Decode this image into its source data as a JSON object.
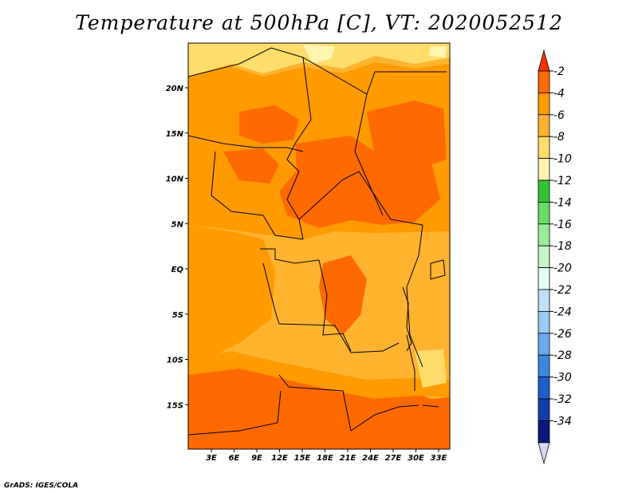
{
  "title": "Temperature at 500hPa [C], VT: 2020052512",
  "credit": "GrADS: IGES/COLA",
  "lat_labels": [
    "20N",
    "15N",
    "10N",
    "5N",
    "EQ",
    "5S",
    "10S",
    "15S"
  ],
  "lon_labels": [
    "3E",
    "6E",
    "9E",
    "12E",
    "15E",
    "18E",
    "21E",
    "24E",
    "27E",
    "30E",
    "33E"
  ],
  "colorbar": {
    "labels": [
      "-2",
      "-4",
      "-6",
      "-8",
      "-10",
      "-12",
      "-14",
      "-16",
      "-18",
      "-20",
      "-22",
      "-24",
      "-26",
      "-28",
      "-30",
      "-32",
      "-34"
    ],
    "colors": [
      "#ff6a00",
      "#ff9a00",
      "#ffb32e",
      "#ffdd6a",
      "#fff4b0",
      "#34c234",
      "#66dd66",
      "#99ee99",
      "#c8f5c8",
      "#e8fff8",
      "#bfe0f8",
      "#99ccf4",
      "#6aaaee",
      "#3c88e0",
      "#1f5fcc",
      "#1240a8",
      "#0a1a7a"
    ],
    "top_arrow_color": "#ff3300",
    "bottom_arrow_color": "#d6d6f5"
  },
  "map_colors": {
    "warmest": "#ff6a00",
    "warm": "#ff9a00",
    "mid": "#ffb32e",
    "cool": "#ffdd6a",
    "coolest": "#fff4b0",
    "lines": "#000000"
  }
}
